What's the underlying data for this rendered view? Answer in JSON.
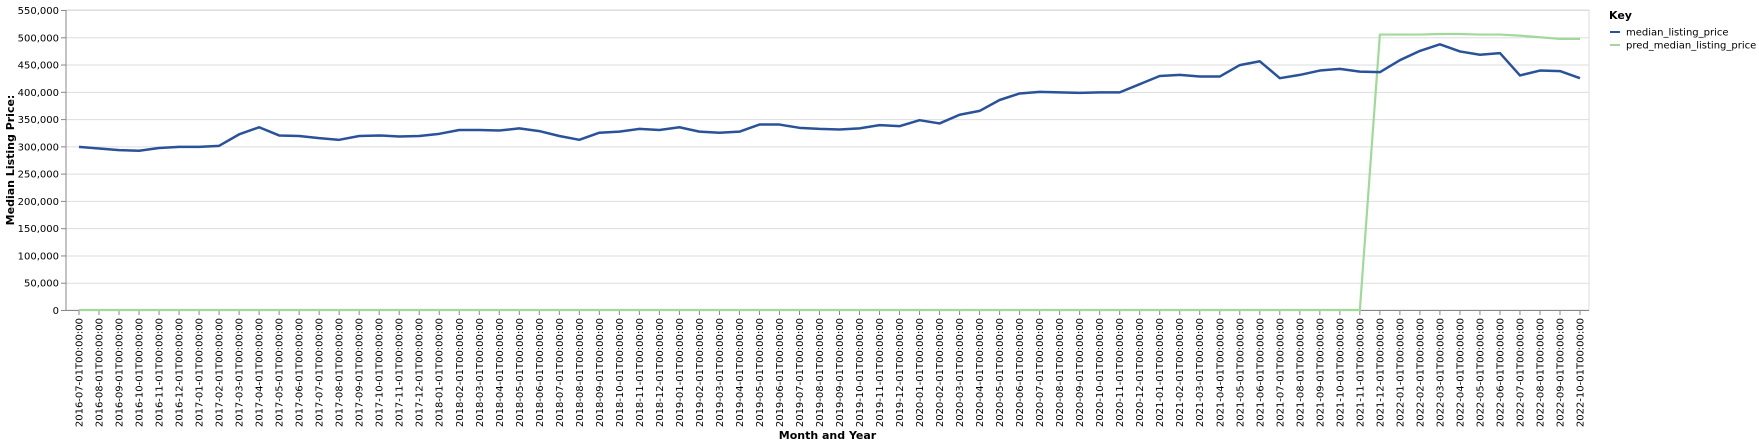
{
  "chart_data": {
    "type": "line",
    "title": "",
    "xlabel": "Month and Year",
    "ylabel": "Median Listing Price:",
    "ylim": [
      0,
      550000
    ],
    "y_ticks": [
      "0",
      "50,000",
      "100,000",
      "150,000",
      "200,000",
      "250,000",
      "300,000",
      "350,000",
      "400,000",
      "450,000",
      "500,000",
      "550,000"
    ],
    "y_tick_values": [
      0,
      50000,
      100000,
      150000,
      200000,
      250000,
      300000,
      350000,
      400000,
      450000,
      500000,
      550000
    ],
    "grid": true,
    "legend": {
      "title": "Key",
      "position": "right"
    },
    "x": [
      "2016-07-01T00:00:00",
      "2016-08-01T00:00:00",
      "2016-09-01T00:00:00",
      "2016-10-01T00:00:00",
      "2016-11-01T00:00:00",
      "2016-12-01T00:00:00",
      "2017-01-01T00:00:00",
      "2017-02-01T00:00:00",
      "2017-03-01T00:00:00",
      "2017-04-01T00:00:00",
      "2017-05-01T00:00:00",
      "2017-06-01T00:00:00",
      "2017-07-01T00:00:00",
      "2017-08-01T00:00:00",
      "2017-09-01T00:00:00",
      "2017-10-01T00:00:00",
      "2017-11-01T00:00:00",
      "2017-12-01T00:00:00",
      "2018-01-01T00:00:00",
      "2018-02-01T00:00:00",
      "2018-03-01T00:00:00",
      "2018-04-01T00:00:00",
      "2018-05-01T00:00:00",
      "2018-06-01T00:00:00",
      "2018-07-01T00:00:00",
      "2018-08-01T00:00:00",
      "2018-09-01T00:00:00",
      "2018-10-01T00:00:00",
      "2018-11-01T00:00:00",
      "2018-12-01T00:00:00",
      "2019-01-01T00:00:00",
      "2019-02-01T00:00:00",
      "2019-03-01T00:00:00",
      "2019-04-01T00:00:00",
      "2019-05-01T00:00:00",
      "2019-06-01T00:00:00",
      "2019-07-01T00:00:00",
      "2019-08-01T00:00:00",
      "2019-09-01T00:00:00",
      "2019-10-01T00:00:00",
      "2019-11-01T00:00:00",
      "2019-12-01T00:00:00",
      "2020-01-01T00:00:00",
      "2020-02-01T00:00:00",
      "2020-03-01T00:00:00",
      "2020-04-01T00:00:00",
      "2020-05-01T00:00:00",
      "2020-06-01T00:00:00",
      "2020-07-01T00:00:00",
      "2020-08-01T00:00:00",
      "2020-09-01T00:00:00",
      "2020-10-01T00:00:00",
      "2020-11-01T00:00:00",
      "2020-12-01T00:00:00",
      "2021-01-01T00:00:00",
      "2021-02-01T00:00:00",
      "2021-03-01T00:00:00",
      "2021-04-01T00:00:00",
      "2021-05-01T00:00:00",
      "2021-06-01T00:00:00",
      "2021-07-01T00:00:00",
      "2021-08-01T00:00:00",
      "2021-09-01T00:00:00",
      "2021-10-01T00:00:00",
      "2021-11-01T00:00:00",
      "2021-12-01T00:00:00",
      "2022-01-01T00:00:00",
      "2022-02-01T00:00:00",
      "2022-03-01T00:00:00",
      "2022-04-01T00:00:00",
      "2022-05-01T00:00:00",
      "2022-06-01T00:00:00",
      "2022-07-01T00:00:00",
      "2022-08-01T00:00:00",
      "2022-09-01T00:00:00",
      "2022-10-01T00:00:00"
    ],
    "series": [
      {
        "name": "median_listing_price",
        "color": "#2a5298",
        "values": [
          299000,
          296000,
          293000,
          292000,
          297000,
          299000,
          299000,
          301000,
          322000,
          335000,
          320000,
          319000,
          315000,
          312000,
          319000,
          320000,
          318000,
          319000,
          323000,
          330000,
          330000,
          329000,
          333000,
          328000,
          319000,
          312000,
          325000,
          327000,
          332000,
          330000,
          335000,
          327000,
          325000,
          327000,
          340000,
          340000,
          334000,
          332000,
          331000,
          333000,
          339000,
          337000,
          348000,
          342000,
          358000,
          365000,
          385000,
          397000,
          400000,
          399000,
          398000,
          399000,
          399000,
          414000,
          429000,
          431000,
          428000,
          428000,
          449000,
          456000,
          425000,
          431000,
          439000,
          442000,
          437000,
          436000,
          458000,
          475000,
          487000,
          474000,
          468000,
          471000,
          430000,
          439000,
          438000,
          425000
        ]
      },
      {
        "name": "pred_median_listing_price",
        "color": "#a1d99b",
        "values": [
          0,
          0,
          0,
          0,
          0,
          0,
          0,
          0,
          0,
          0,
          0,
          0,
          0,
          0,
          0,
          0,
          0,
          0,
          0,
          0,
          0,
          0,
          0,
          0,
          0,
          0,
          0,
          0,
          0,
          0,
          0,
          0,
          0,
          0,
          0,
          0,
          0,
          0,
          0,
          0,
          0,
          0,
          0,
          0,
          0,
          0,
          0,
          0,
          0,
          0,
          0,
          0,
          0,
          0,
          0,
          0,
          0,
          0,
          0,
          0,
          0,
          0,
          0,
          0,
          0,
          505000,
          505000,
          505000,
          506000,
          506000,
          505000,
          505000,
          503000,
          500000,
          497000,
          497000
        ]
      }
    ]
  }
}
